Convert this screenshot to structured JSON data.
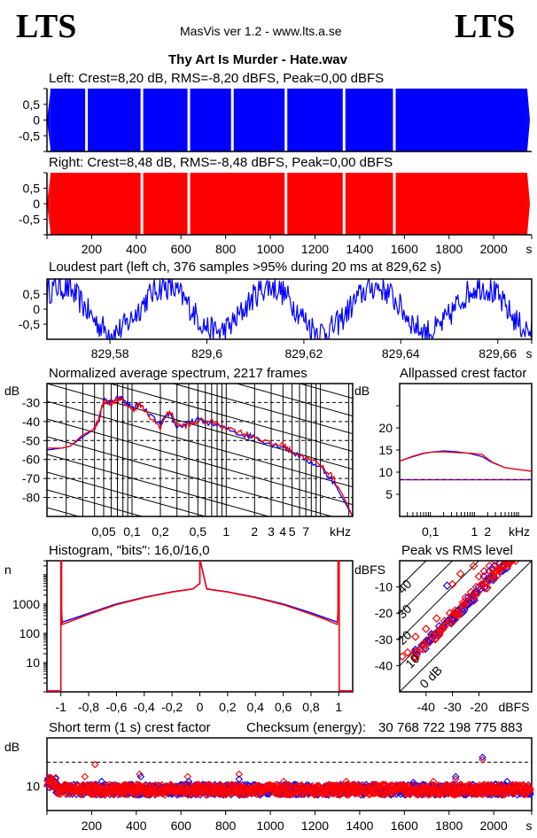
{
  "header": {
    "logo_left": "LTS",
    "logo_right": "LTS",
    "app_title": "MasVis ver 1.2 - www.lts.a.se",
    "file_title": "Thy Art Is Murder - Hate.wav"
  },
  "colors": {
    "left": "#0000ff",
    "right": "#ff0000"
  },
  "chart_data": [
    {
      "id": "left-waveform",
      "type": "area",
      "title": "Left: Crest=8,20 dB, RMS=-8,20 dBFS, Peak=0,00 dBFS",
      "ylim": [
        -1,
        1
      ],
      "yticks": [
        0.5,
        0,
        -0.5
      ],
      "ytick_labels": [
        "0,5",
        "0",
        "-0,5"
      ],
      "xlim": [
        0,
        2170
      ],
      "gaps_s": [
        15,
        177,
        425,
        635,
        830,
        1070,
        1330,
        1555,
        2150
      ],
      "marker_s": 830,
      "color": "#0000ff"
    },
    {
      "id": "right-waveform",
      "type": "area",
      "title": "Right: Crest=8,48 dB, RMS=-8,48 dBFS, Peak=0,00 dBFS",
      "ylim": [
        -1,
        1
      ],
      "yticks": [
        0.5,
        0,
        -0.5
      ],
      "ytick_labels": [
        "0,5",
        "0",
        "-0,5"
      ],
      "xlim": [
        0,
        2170
      ],
      "xticks": [
        200,
        400,
        600,
        800,
        1000,
        1200,
        1400,
        1600,
        1800,
        2000
      ],
      "xtick_labels": [
        "200",
        "400",
        "600",
        "800",
        "1000",
        "1200",
        "1400",
        "1600",
        "1800",
        "2000"
      ],
      "xunit": "s",
      "gaps_s": [
        15,
        425,
        635,
        1070,
        1330,
        1555,
        2150
      ],
      "color": "#ff0000"
    },
    {
      "id": "loudest-part",
      "type": "line",
      "title": "Loudest part (left  ch, 376 samples >95% during 20 ms at 829,62 s)",
      "xlim": [
        829.567,
        829.667
      ],
      "ylim": [
        -1,
        1
      ],
      "yticks": [
        0.5,
        0,
        -0.5
      ],
      "ytick_labels": [
        "0,5",
        "0",
        "-0,5"
      ],
      "xticks": [
        829.58,
        829.6,
        829.62,
        829.64,
        829.66
      ],
      "xtick_labels": [
        "829,58",
        "829,6",
        "829,62",
        "829,64",
        "829,66"
      ],
      "xunit": "s",
      "color": "#0000ff"
    },
    {
      "id": "spectrum",
      "type": "line",
      "title": "Normalized average spectrum, 2217 frames",
      "ylabel": "dB",
      "xunit": "kHz",
      "xscale": "log",
      "xlim_khz": [
        0.0125,
        22
      ],
      "ylim": [
        -90,
        -20
      ],
      "yticks": [
        -30,
        -40,
        -50,
        -60,
        -70,
        -80
      ],
      "ytick_labels": [
        "-30",
        "-40",
        "-50",
        "-60",
        "-70",
        "-80"
      ],
      "xtick_labels": [
        "0,05",
        "0,1",
        "0,2",
        "0,5",
        "1",
        "2",
        "3",
        "4",
        "5",
        "7"
      ],
      "xticks_khz": [
        0.05,
        0.1,
        0.2,
        0.5,
        1,
        2,
        3,
        4,
        5,
        7
      ],
      "x_khz": [
        0.0125,
        0.018,
        0.022,
        0.03,
        0.04,
        0.045,
        0.05,
        0.06,
        0.07,
        0.08,
        0.1,
        0.12,
        0.15,
        0.2,
        0.25,
        0.3,
        0.4,
        0.5,
        0.7,
        1,
        1.5,
        2,
        3,
        4,
        5,
        7,
        10,
        13,
        17,
        22
      ],
      "series": [
        {
          "name": "Left",
          "color": "#0000ff",
          "values": [
            -55,
            -54,
            -53,
            -48,
            -44,
            -38,
            -29,
            -30,
            -28,
            -28,
            -33,
            -31,
            -36,
            -42,
            -35,
            -43,
            -41,
            -39,
            -41,
            -44,
            -47,
            -48,
            -52,
            -53,
            -56,
            -60,
            -64,
            -70,
            -80,
            -90
          ]
        },
        {
          "name": "Right",
          "color": "#ff0000",
          "values": [
            -54,
            -54,
            -53,
            -47,
            -44,
            -38,
            -29,
            -31,
            -28,
            -29,
            -34,
            -31,
            -37,
            -43,
            -34,
            -42,
            -42,
            -40,
            -40,
            -43,
            -46,
            -48,
            -52,
            -52,
            -56,
            -59,
            -63,
            -68,
            -78,
            -90
          ]
        }
      ]
    },
    {
      "id": "allpassed-crest",
      "type": "line",
      "title": "Allpassed crest factor",
      "ylabel": "dB",
      "xunit": "kHz",
      "ylim": [
        0,
        30
      ],
      "yticks": [
        5,
        10,
        15,
        20
      ],
      "ytick_labels": [
        "5",
        "10",
        "15",
        "20"
      ],
      "xtick_labels": [
        "0,1",
        "1",
        "2"
      ],
      "xticks_khz": [
        0.1,
        1,
        2
      ],
      "x_khz": [
        0.02,
        0.04,
        0.07,
        0.1,
        0.2,
        0.4,
        0.8,
        1.5,
        2.5,
        5,
        10,
        20
      ],
      "series": [
        {
          "name": "Left",
          "color": "#0000ff",
          "values": [
            12.5,
            13.5,
            14.2,
            14.5,
            14.8,
            14.6,
            14.2,
            13.5,
            12.2,
            11.0,
            10.6,
            10.2
          ],
          "reference": 8.2
        },
        {
          "name": "Right",
          "color": "#ff0000",
          "values": [
            12.5,
            13.6,
            14.3,
            14.5,
            14.6,
            14.4,
            14.3,
            14.0,
            12.3,
            11.0,
            10.6,
            10.2
          ],
          "reference": 8.48
        }
      ]
    },
    {
      "id": "histogram",
      "type": "line",
      "title": "Histogram, \"bits\": 16,0/16,0",
      "ylabel": "n",
      "yscale": "log",
      "ylim": [
        1,
        100000
      ],
      "yticks": [
        1000,
        100,
        10
      ],
      "ytick_labels": [
        "1000",
        "100",
        "10"
      ],
      "xlim": [
        -1.1,
        1.1
      ],
      "xticks": [
        -1,
        -0.8,
        -0.6,
        -0.4,
        -0.2,
        0,
        0.2,
        0.4,
        0.6,
        0.8,
        1
      ],
      "xtick_labels": [
        "-1",
        "-0,8",
        "-0,6",
        "-0,4",
        "-0,2",
        "0",
        "0,2",
        "0,4",
        "0,6",
        "0,8",
        "1"
      ],
      "x": [
        -0.99,
        -0.9,
        -0.8,
        -0.6,
        -0.4,
        -0.2,
        -0.05,
        0,
        0.05,
        0.2,
        0.4,
        0.6,
        0.8,
        0.9,
        0.99
      ],
      "series": [
        {
          "name": "Left",
          "color": "#0000ff",
          "values": [
            240,
            330,
            480,
            1000,
            1700,
            2600,
            3300,
            5000,
            3300,
            2600,
            1700,
            1000,
            500,
            340,
            240
          ]
        },
        {
          "name": "Right",
          "color": "#ff0000",
          "values": [
            200,
            290,
            440,
            950,
            1650,
            2550,
            3250,
            5000,
            3250,
            2550,
            1650,
            950,
            450,
            300,
            200
          ]
        }
      ]
    },
    {
      "id": "peak-vs-rms",
      "type": "scatter",
      "title": "Peak vs RMS level",
      "ylabel": "dBFS",
      "xlabel": "dBFS",
      "xlim": [
        -50,
        0
      ],
      "ylim": [
        -50,
        0
      ],
      "xticks": [
        -40,
        -30,
        -20
      ],
      "xtick_labels": [
        "-40",
        "-30",
        "-20"
      ],
      "yticks": [
        -10,
        -20,
        -30,
        -40
      ],
      "ytick_labels": [
        "-10",
        "-20",
        "-30",
        "-40"
      ],
      "crest_lines": [
        0,
        10,
        20,
        30,
        40
      ],
      "crest_labels": [
        "0 dB",
        "10",
        "20",
        "30",
        "40"
      ],
      "series": [
        {
          "name": "Left",
          "color": "#0000ff",
          "points": [
            [
              -32,
              -9.5
            ],
            [
              -44,
              -34
            ],
            [
              -38,
              -28
            ],
            [
              -35,
              -25
            ],
            [
              -30,
              -22
            ],
            [
              -28,
              -19
            ],
            [
              -25,
              -16
            ],
            [
              -22,
              -13
            ],
            [
              -20,
              -10
            ],
            [
              -18,
              -6
            ],
            [
              -16,
              -4
            ],
            [
              -14,
              -2
            ],
            [
              -12,
              -1
            ],
            [
              -10,
              0
            ],
            [
              -15,
              -3
            ],
            [
              -17,
              -8
            ],
            [
              -21,
              -12
            ],
            [
              -24,
              -14
            ]
          ]
        },
        {
          "name": "Right",
          "color": "#ff0000",
          "points": [
            [
              -49,
              -36.5
            ],
            [
              -47,
              -35
            ],
            [
              -44,
              -29
            ],
            [
              -40,
              -26
            ],
            [
              -40,
              -32
            ],
            [
              -36,
              -22
            ],
            [
              -30,
              -9
            ],
            [
              -27,
              -5
            ],
            [
              -22,
              -2
            ],
            [
              -20,
              -6
            ],
            [
              -18,
              -4
            ],
            [
              -16,
              -2
            ],
            [
              -14,
              0
            ],
            [
              -10,
              0
            ],
            [
              -8,
              0
            ],
            [
              -6,
              0
            ],
            [
              -19,
              -9
            ],
            [
              -23,
              -12
            ],
            [
              -26,
              -16
            ],
            [
              -31,
              -20
            ],
            [
              -33,
              -23
            ],
            [
              -29,
              -19
            ],
            [
              -25,
              -14
            ],
            [
              -21,
              -10
            ],
            [
              -17,
              -7
            ],
            [
              -15,
              -5
            ],
            [
              -13,
              -3
            ]
          ]
        }
      ]
    },
    {
      "id": "short-term-crest",
      "type": "scatter",
      "title": "Short term (1 s) crest factor",
      "ylabel": "dB",
      "xlim": [
        0,
        2170
      ],
      "ylim": [
        5,
        20
      ],
      "yticks": [
        10
      ],
      "ytick_labels": [
        "10"
      ],
      "reference_line_db": 15,
      "xticks": [
        200,
        400,
        600,
        800,
        1000,
        1200,
        1400,
        1600,
        1800,
        2000
      ],
      "xtick_labels": [
        "200",
        "400",
        "600",
        "800",
        "1000",
        "1200",
        "1400",
        "1600",
        "1800",
        "2000"
      ],
      "xunit": "s",
      "baseline_db": 9.3,
      "outliers": [
        {
          "name": "Right",
          "color": "#ff0000",
          "points": [
            [
              215,
              14.5
            ],
            [
              170,
              12
            ],
            [
              415,
              12.5
            ],
            [
              630,
              12
            ],
            [
              860,
              12.5
            ],
            [
              1060,
              11
            ],
            [
              1340,
              11
            ],
            [
              1730,
              11
            ],
            [
              1950,
              15.5
            ],
            [
              1830,
              11.5
            ]
          ]
        },
        {
          "name": "Left",
          "color": "#0000ff",
          "points": [
            [
              245,
              11
            ],
            [
              420,
              12
            ],
            [
              635,
              11
            ],
            [
              860,
              11.5
            ],
            [
              1640,
              10.8
            ],
            [
              1830,
              12
            ],
            [
              1950,
              16
            ],
            [
              2060,
              11
            ]
          ]
        }
      ]
    }
  ],
  "checksum": {
    "label": "Checksum (energy):",
    "value": "30 768 722 198 775 883"
  }
}
